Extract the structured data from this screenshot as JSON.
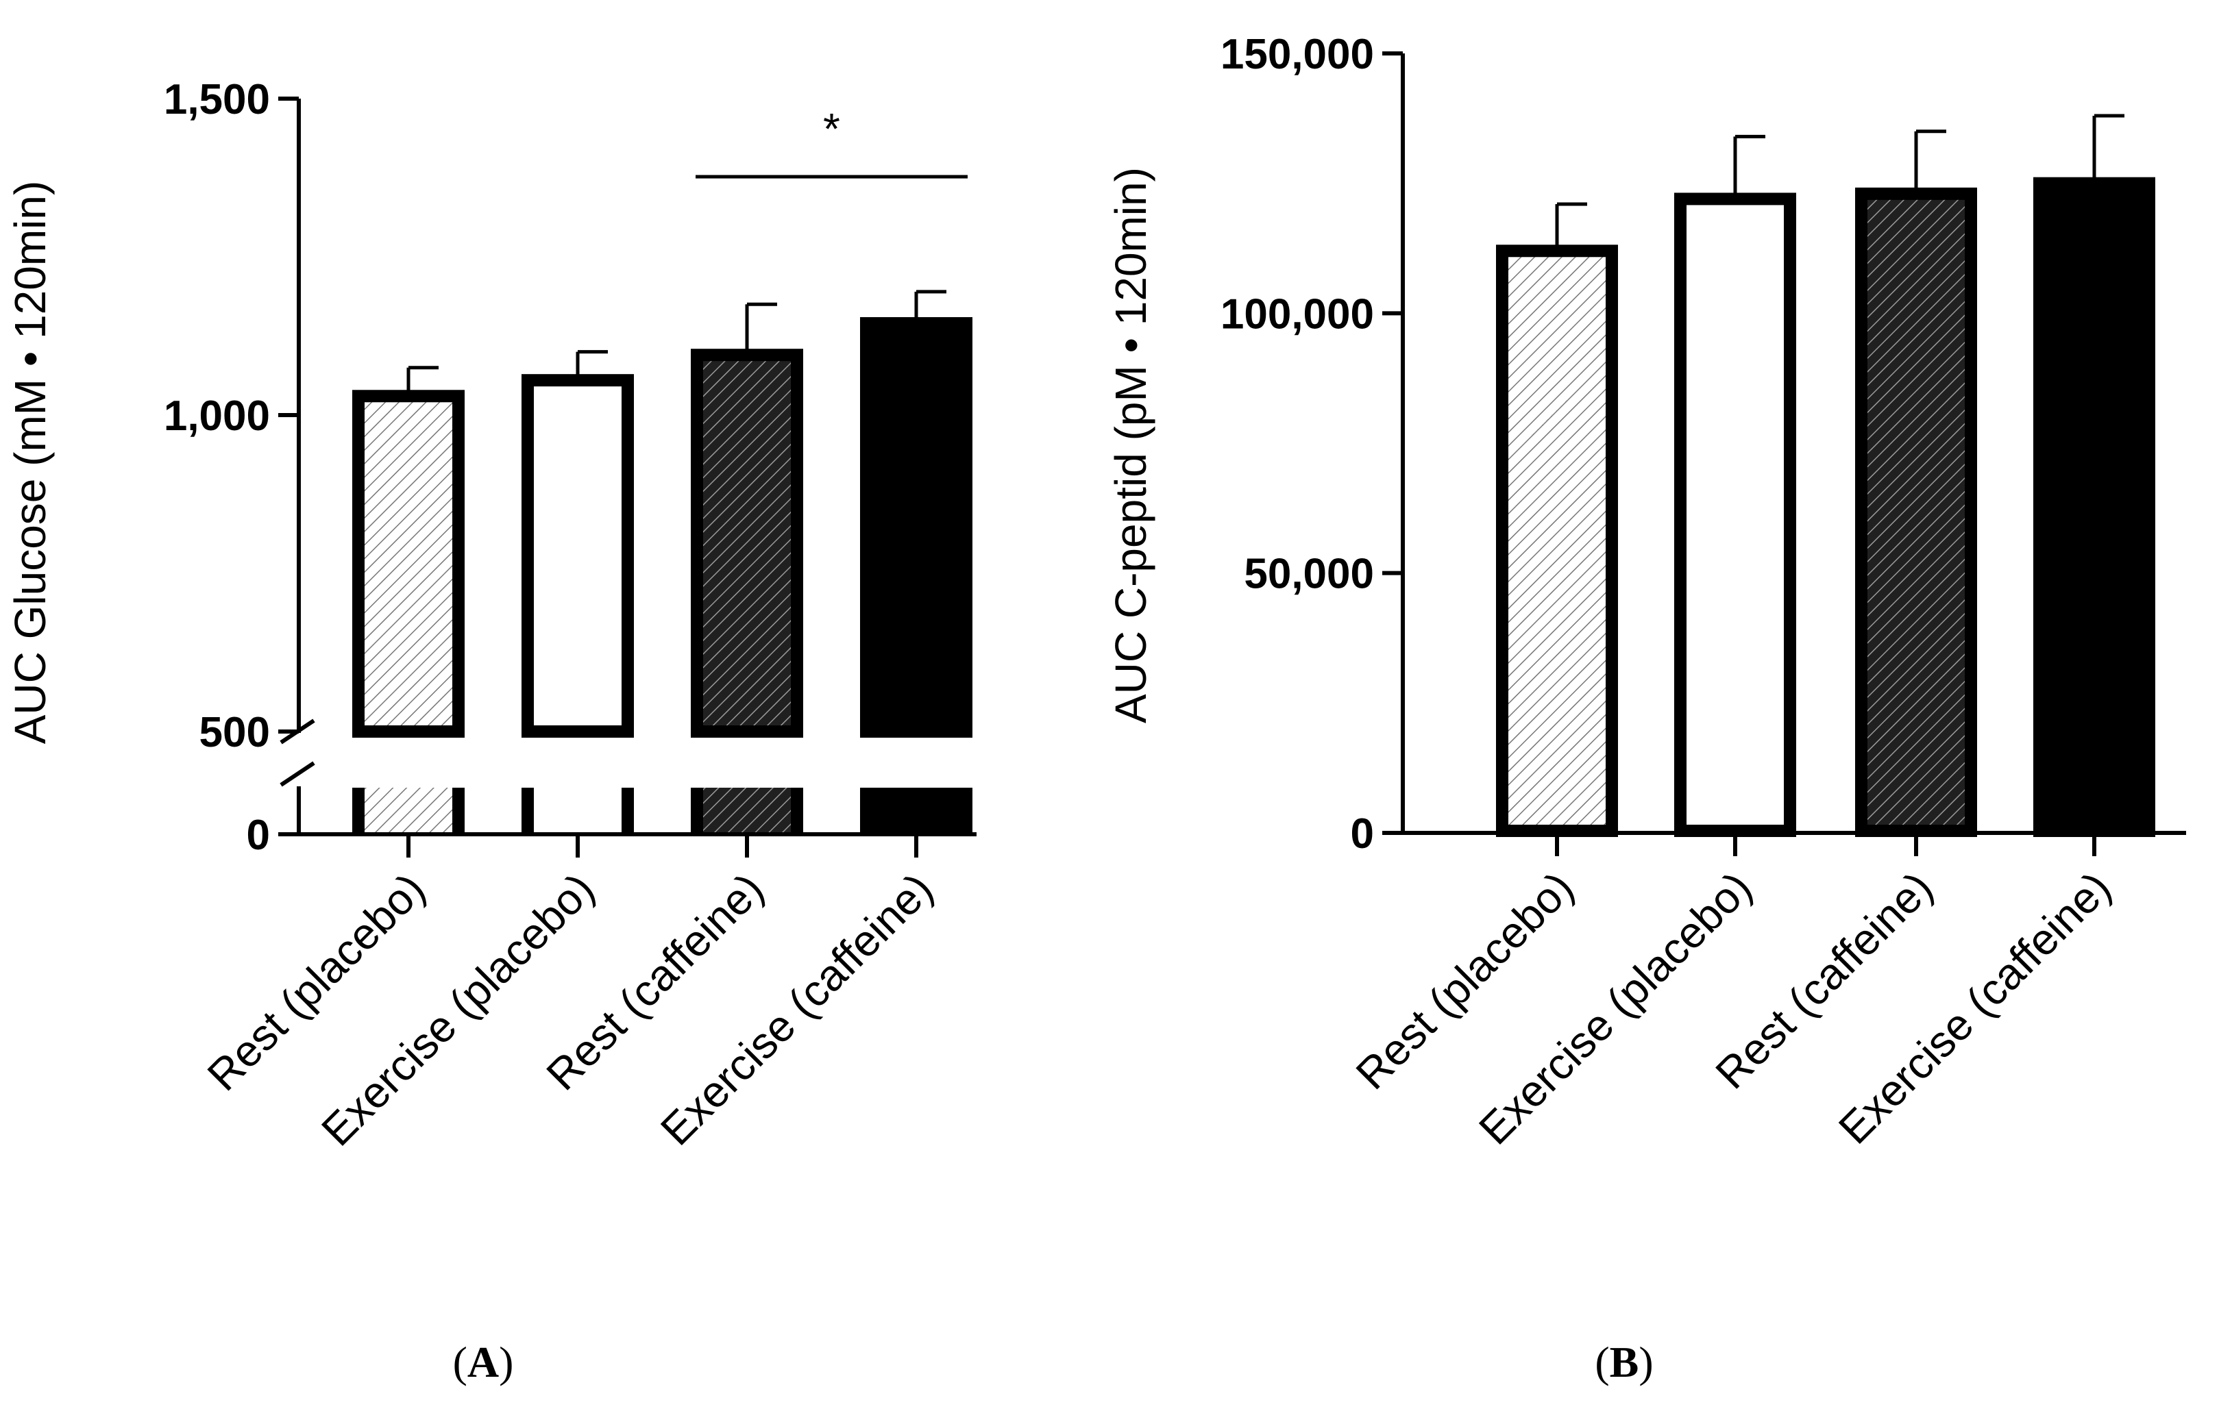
{
  "chart_data": [
    {
      "panel_label": "A",
      "type": "bar",
      "ylabel": "AUC Glucose (mM • 120min)",
      "xlabel": "",
      "categories": [
        "Rest (placebo)",
        "Exercise (placebo)",
        "Rest (caffeine)",
        "Exercise (caffeine)"
      ],
      "values": [
        1030,
        1055,
        1095,
        1145
      ],
      "error_upper": [
        1075,
        1100,
        1175,
        1195
      ],
      "fills": [
        "hatch-light",
        "white",
        "hatch-dark",
        "black"
      ],
      "ylim": [
        0,
        1500
      ],
      "axis_break": {
        "lower_range": [
          0,
          80
        ],
        "upper_range": [
          500,
          1500
        ]
      },
      "yticks": [
        0,
        500,
        1000,
        1500
      ],
      "ytick_labels": [
        "0",
        "500",
        "1,000",
        "1,500"
      ],
      "annotations": [
        {
          "type": "significance",
          "from": "Rest (caffeine)",
          "to": "Exercise (caffeine)",
          "label": "*"
        }
      ]
    },
    {
      "panel_label": "B",
      "type": "bar",
      "ylabel": "AUC C-peptid (pM • 120min)",
      "xlabel": "",
      "categories": [
        "Rest (placebo)",
        "Exercise (placebo)",
        "Rest (caffeine)",
        "Exercise (caffeine)"
      ],
      "values": [
        112000,
        122000,
        123000,
        125000
      ],
      "error_upper": [
        121000,
        134000,
        135000,
        138000
      ],
      "fills": [
        "hatch-light",
        "white",
        "hatch-dark",
        "black"
      ],
      "ylim": [
        0,
        150000
      ],
      "yticks": [
        0,
        50000,
        100000,
        150000
      ],
      "ytick_labels": [
        "0",
        "50,000",
        "100,000",
        "150,000"
      ],
      "annotations": []
    }
  ],
  "colors": {
    "ink": "#000000",
    "bar_light_bg": "#ffffff",
    "bar_dark_bg": "#202020",
    "hatch_light": "#777777",
    "hatch_dark": "#9a9a9a"
  }
}
